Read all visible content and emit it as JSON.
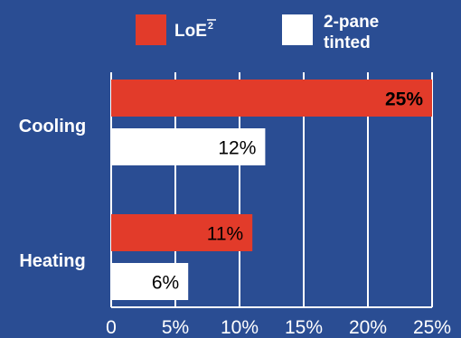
{
  "chart_data": {
    "type": "bar",
    "orientation": "horizontal",
    "categories": [
      "Cooling",
      "Heating"
    ],
    "series": [
      {
        "name": "LoE²",
        "values": [
          25,
          11
        ],
        "labels": [
          "25%",
          "11%"
        ],
        "color": "#e23b2a",
        "label_color": "#000000",
        "label_bold": [
          true,
          false
        ]
      },
      {
        "name": "2-pane tinted",
        "values": [
          12,
          6
        ],
        "labels": [
          "12%",
          "6%"
        ],
        "color": "#ffffff",
        "label_color": "#000000",
        "label_bold": [
          false,
          false
        ]
      }
    ],
    "xlim": [
      0,
      25
    ],
    "ticks": [
      0,
      5,
      10,
      15,
      20,
      25
    ],
    "tick_labels": [
      "0",
      "5%",
      "10%",
      "15%",
      "20%",
      "25%"
    ],
    "grid": true,
    "legend_position": "top",
    "background": "#2a4d93",
    "legend": {
      "loe_base": "LoE",
      "loe_sup": "2",
      "tinted_line1": "2-pane",
      "tinted_line2": "tinted"
    }
  }
}
